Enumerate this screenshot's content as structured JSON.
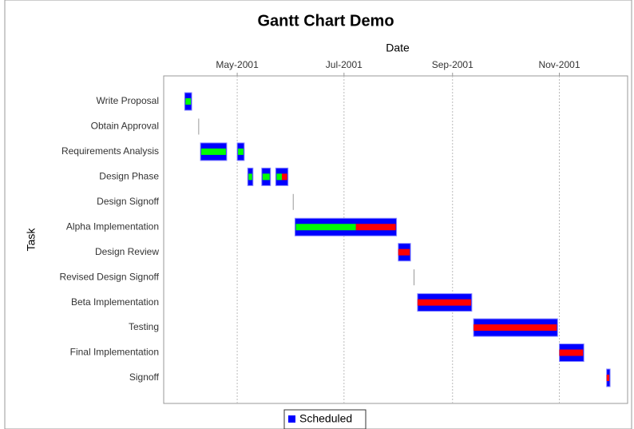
{
  "chart_data": {
    "type": "gantt",
    "title": "Gantt Chart Demo",
    "x_label": "Date",
    "y_label": "Task",
    "categories": [
      "Write Proposal",
      "Obtain Approval",
      "Requirements Analysis",
      "Design Phase",
      "Design Signoff",
      "Alpha Implementation",
      "Design Review",
      "Revised Design Signoff",
      "Beta Implementation",
      "Testing",
      "Final Implementation",
      "Signoff"
    ],
    "xlim": [
      "2001-03-20",
      "2001-12-10"
    ],
    "xticks": [
      {
        "value": "2001-05-01",
        "label": "May-2001"
      },
      {
        "value": "2001-07-01",
        "label": "Jul-2001"
      },
      {
        "value": "2001-09-01",
        "label": "Sep-2001"
      },
      {
        "value": "2001-11-01",
        "label": "Nov-2001"
      }
    ],
    "grid": true,
    "legend": "bottom",
    "complete_color": "#00ff00",
    "incomplete_color": "#ff0000",
    "milestone_color": "#999999",
    "series": [
      {
        "name": "Scheduled",
        "color": "#0000ff",
        "values": [
          {
            "start": "2001-04-01",
            "end": "2001-04-05",
            "percent_complete": 1.0
          },
          {
            "start": "2001-04-09",
            "end": "2001-04-09",
            "percent_complete": 0
          },
          {
            "start": "2001-04-10",
            "end": "2001-05-05",
            "percent_complete": 1.0,
            "subtasks": [
              {
                "start": "2001-04-10",
                "end": "2001-04-25",
                "percent_complete": 1.0
              },
              {
                "start": "2001-05-01",
                "end": "2001-05-05",
                "percent_complete": 1.0
              }
            ]
          },
          {
            "start": "2001-05-06",
            "end": "2001-05-30",
            "percent_complete": 0.8,
            "subtasks": [
              {
                "start": "2001-05-07",
                "end": "2001-05-10",
                "percent_complete": 1.0
              },
              {
                "start": "2001-05-15",
                "end": "2001-05-20",
                "percent_complete": 1.0
              },
              {
                "start": "2001-05-23",
                "end": "2001-05-30",
                "percent_complete": 0.5
              }
            ]
          },
          {
            "start": "2001-06-02",
            "end": "2001-06-02",
            "percent_complete": 0
          },
          {
            "start": "2001-06-03",
            "end": "2001-07-31",
            "percent_complete": 0.6
          },
          {
            "start": "2001-08-01",
            "end": "2001-08-08",
            "percent_complete": 0
          },
          {
            "start": "2001-08-10",
            "end": "2001-08-10",
            "percent_complete": 0
          },
          {
            "start": "2001-08-12",
            "end": "2001-09-12",
            "percent_complete": 0
          },
          {
            "start": "2001-09-13",
            "end": "2001-10-31",
            "percent_complete": 0
          },
          {
            "start": "2001-11-01",
            "end": "2001-11-15",
            "percent_complete": 0
          },
          {
            "start": "2001-11-28",
            "end": "2001-11-30",
            "percent_complete": 0
          }
        ]
      }
    ]
  }
}
